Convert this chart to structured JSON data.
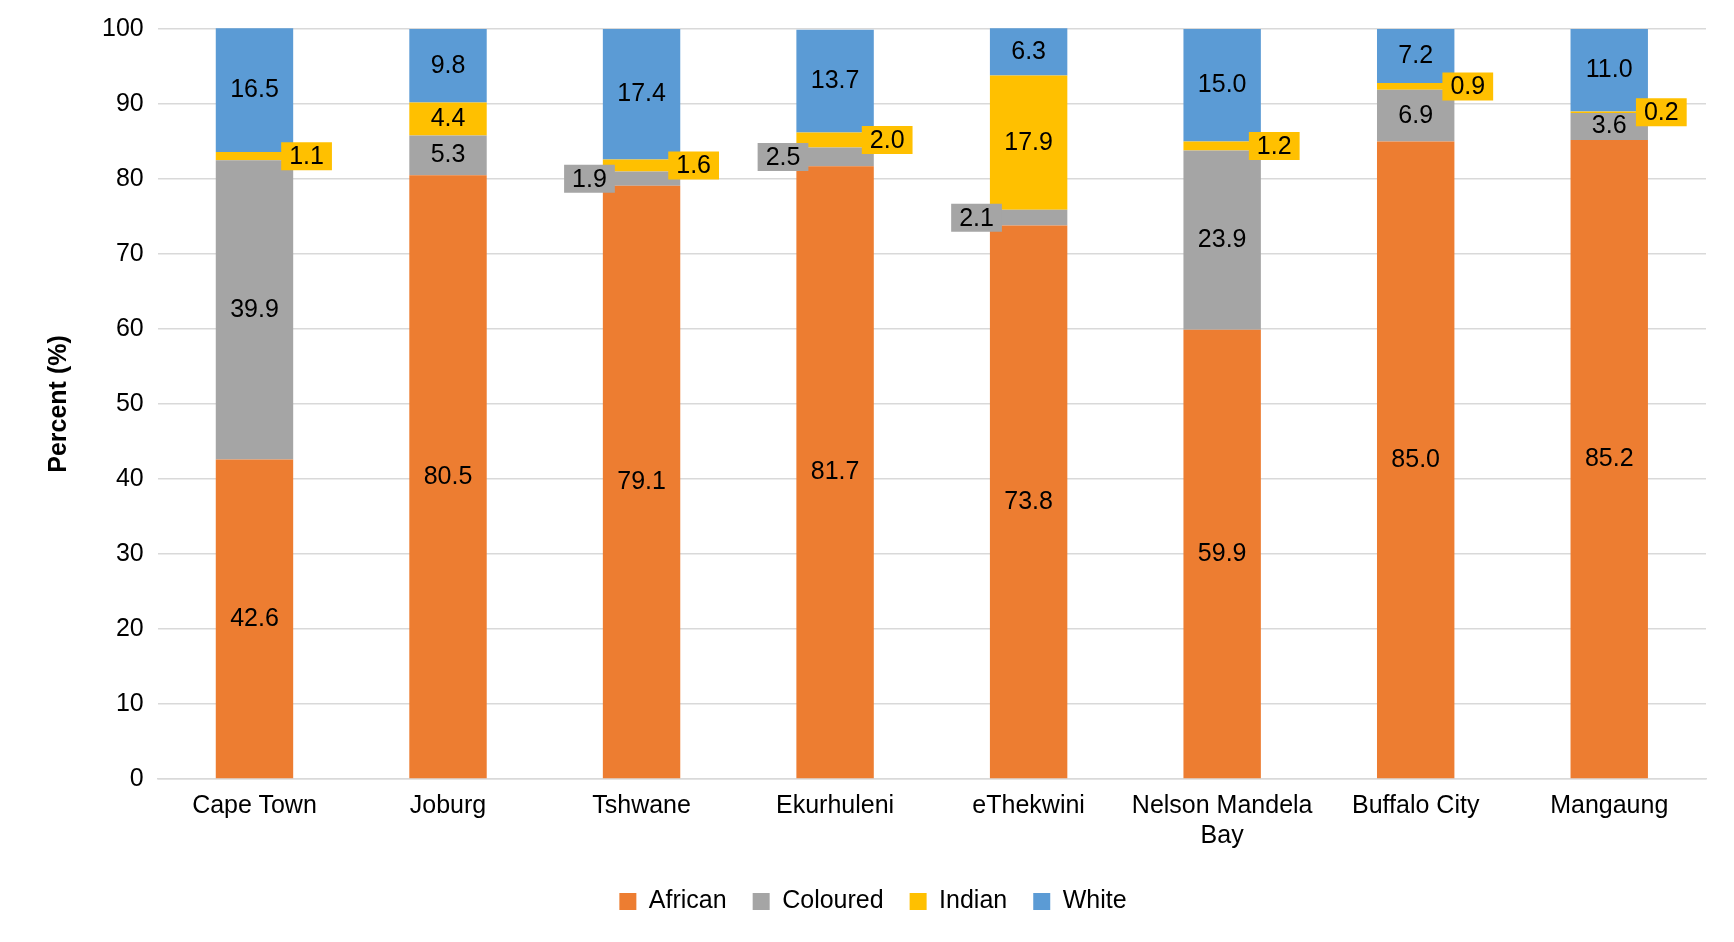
{
  "chart_data": {
    "type": "bar",
    "stacked": true,
    "ylabel": "Percent (%)",
    "categories": [
      "Cape Town",
      "Joburg",
      "Tshwane",
      "Ekurhuleni",
      "eThekwini",
      "Nelson Mandela Bay",
      "Buffalo City",
      "Mangaung"
    ],
    "series": [
      {
        "name": "African",
        "color": "#ed7d31",
        "values": [
          42.6,
          80.5,
          79.1,
          81.7,
          73.8,
          59.9,
          85.0,
          85.2
        ],
        "value_labels": [
          "42.6",
          "80.5",
          "79.1",
          "81.7",
          "73.8",
          "59.9",
          "85.0",
          "85.2"
        ]
      },
      {
        "name": "Coloured",
        "color": "#a5a5a5",
        "values": [
          39.9,
          5.3,
          1.9,
          2.5,
          2.1,
          23.9,
          6.9,
          3.6
        ],
        "value_labels": [
          "39.9",
          "5.3",
          "1.9",
          "2.5",
          "2.1",
          "23.9",
          "6.9",
          "3.6"
        ]
      },
      {
        "name": "Indian",
        "color": "#ffc000",
        "values": [
          1.1,
          4.4,
          1.6,
          2.0,
          17.9,
          1.2,
          0.9,
          0.2
        ],
        "value_labels": [
          "1.1",
          "4.4",
          "1.6",
          "2.0",
          "17.9",
          "1.2",
          "0.9",
          "0.2"
        ]
      },
      {
        "name": "White",
        "color": "#5b9bd5",
        "values": [
          16.5,
          9.8,
          17.4,
          13.7,
          6.3,
          15.0,
          7.2,
          11.0
        ],
        "value_labels": [
          "16.5",
          "9.8",
          "17.4",
          "13.7",
          "6.3",
          "15.0",
          "7.2",
          "11.0"
        ]
      }
    ],
    "ylim": [
      0,
      100
    ],
    "yticks": [
      0,
      10,
      20,
      30,
      40,
      50,
      60,
      70,
      80,
      90,
      100
    ],
    "grid": "y",
    "legend": "bottom"
  }
}
